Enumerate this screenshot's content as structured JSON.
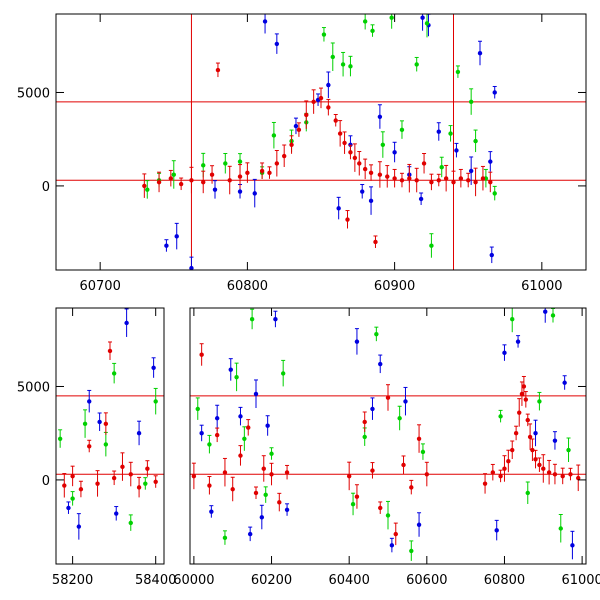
{
  "chart_data": [
    {
      "type": "scatter",
      "title": "",
      "xlabel": "",
      "ylabel": "",
      "xlim": [
        60670,
        61030
      ],
      "ylim": [
        -4500,
        9200
      ],
      "xticks": [
        60700,
        60800,
        60900,
        61000
      ],
      "yticks": [
        0,
        5000
      ],
      "hlines": [
        4500,
        300
      ],
      "vlines": [
        60762,
        60940
      ],
      "series": [
        {
          "color": "#0000e0",
          "points": [
            [
              60745,
              -3200
            ],
            [
              60752,
              -2700
            ],
            [
              60762,
              -4400
            ],
            [
              60778,
              -200
            ],
            [
              60795,
              -300
            ],
            [
              60805,
              -400
            ],
            [
              60812,
              8800
            ],
            [
              60820,
              7600
            ],
            [
              60833,
              3200
            ],
            [
              60848,
              4600
            ],
            [
              60855,
              5400
            ],
            [
              60862,
              -1200
            ],
            [
              60870,
              2200
            ],
            [
              60878,
              -300
            ],
            [
              60884,
              -800
            ],
            [
              60890,
              3700
            ],
            [
              60900,
              1800
            ],
            [
              60910,
              600
            ],
            [
              60918,
              -700
            ],
            [
              60919,
              9000
            ],
            [
              60923,
              8600
            ],
            [
              60930,
              2900
            ],
            [
              60942,
              1900
            ],
            [
              60952,
              800
            ],
            [
              60958,
              7100
            ],
            [
              60965,
              1300
            ],
            [
              60966,
              -3700
            ],
            [
              60968,
              5000
            ]
          ]
        },
        {
          "color": "#00d000",
          "points": [
            [
              60732,
              -200
            ],
            [
              60740,
              300
            ],
            [
              60750,
              600
            ],
            [
              60770,
              1100
            ],
            [
              60785,
              1200
            ],
            [
              60795,
              1300
            ],
            [
              60810,
              700
            ],
            [
              60818,
              2700
            ],
            [
              60830,
              2400
            ],
            [
              60840,
              3400
            ],
            [
              60852,
              8100
            ],
            [
              60858,
              6900
            ],
            [
              60865,
              6500
            ],
            [
              60870,
              6400
            ],
            [
              60880,
              8800
            ],
            [
              60885,
              8300
            ],
            [
              60892,
              2200
            ],
            [
              60898,
              9000
            ],
            [
              60905,
              3000
            ],
            [
              60915,
              6500
            ],
            [
              60922,
              8700
            ],
            [
              60925,
              -3200
            ],
            [
              60932,
              1000
            ],
            [
              60938,
              2800
            ],
            [
              60943,
              6100
            ],
            [
              60952,
              4500
            ],
            [
              60955,
              2400
            ],
            [
              60962,
              400
            ],
            [
              60968,
              -400
            ]
          ]
        },
        {
          "color": "#e00000",
          "points": [
            [
              60730,
              0
            ],
            [
              60740,
              200
            ],
            [
              60748,
              400
            ],
            [
              60755,
              100
            ],
            [
              60762,
              300
            ],
            [
              60770,
              200
            ],
            [
              60776,
              600
            ],
            [
              60780,
              6200
            ],
            [
              60788,
              300
            ],
            [
              60795,
              500
            ],
            [
              60800,
              700
            ],
            [
              60810,
              800
            ],
            [
              60815,
              700
            ],
            [
              60820,
              1200
            ],
            [
              60825,
              1600
            ],
            [
              60830,
              2200
            ],
            [
              60835,
              3000
            ],
            [
              60840,
              3800
            ],
            [
              60845,
              4500
            ],
            [
              60850,
              4700
            ],
            [
              60855,
              4200
            ],
            [
              60860,
              3500
            ],
            [
              60863,
              2800
            ],
            [
              60866,
              2300
            ],
            [
              60868,
              -1800
            ],
            [
              60870,
              1800
            ],
            [
              60873,
              1500
            ],
            [
              60876,
              1200
            ],
            [
              60880,
              900
            ],
            [
              60884,
              700
            ],
            [
              60887,
              -3000
            ],
            [
              60890,
              600
            ],
            [
              60895,
              500
            ],
            [
              60900,
              400
            ],
            [
              60905,
              300
            ],
            [
              60910,
              400
            ],
            [
              60915,
              300
            ],
            [
              60920,
              1200
            ],
            [
              60925,
              200
            ],
            [
              60930,
              300
            ],
            [
              60935,
              400
            ],
            [
              60940,
              200
            ],
            [
              60945,
              400
            ],
            [
              60950,
              300
            ],
            [
              60955,
              200
            ],
            [
              60960,
              400
            ],
            [
              60965,
              200
            ]
          ]
        }
      ]
    },
    {
      "type": "scatter",
      "title": "",
      "xlabel": "",
      "ylabel": "",
      "broken_x_axis": true,
      "segments": [
        {
          "xlim": [
            58160,
            58420
          ],
          "xticks": [
            58200,
            58400
          ]
        },
        {
          "xlim": [
            59990,
            61010
          ],
          "xticks": [
            60000,
            60200,
            60400,
            60600,
            60800,
            61000
          ]
        }
      ],
      "ylim": [
        -4500,
        9200
      ],
      "yticks": [
        0,
        5000
      ],
      "hlines": [
        4500,
        300
      ],
      "series": [
        {
          "color": "#0000e0",
          "points": [
            [
              58190,
              -1500
            ],
            [
              58215,
              -2500
            ],
            [
              58240,
              4200
            ],
            [
              58265,
              3100
            ],
            [
              58305,
              -1800
            ],
            [
              58330,
              8400
            ],
            [
              58360,
              2500
            ],
            [
              58395,
              6000
            ],
            [
              60020,
              2500
            ],
            [
              60045,
              -1700
            ],
            [
              60060,
              3300
            ],
            [
              60095,
              5900
            ],
            [
              60120,
              3400
            ],
            [
              60145,
              -2900
            ],
            [
              60160,
              4600
            ],
            [
              60175,
              -2000
            ],
            [
              60190,
              2900
            ],
            [
              60210,
              8600
            ],
            [
              60240,
              -1600
            ],
            [
              60420,
              7400
            ],
            [
              60460,
              3800
            ],
            [
              60480,
              6200
            ],
            [
              60510,
              -3500
            ],
            [
              60545,
              4200
            ],
            [
              60580,
              -2400
            ],
            [
              60780,
              -2700
            ],
            [
              60800,
              6800
            ],
            [
              60835,
              7400
            ],
            [
              60880,
              2500
            ],
            [
              60905,
              9000
            ],
            [
              60930,
              2100
            ],
            [
              60955,
              5200
            ],
            [
              60975,
              -3500
            ]
          ]
        },
        {
          "color": "#00d000",
          "points": [
            [
              58170,
              2200
            ],
            [
              58200,
              -1000
            ],
            [
              58230,
              3000
            ],
            [
              58280,
              1900
            ],
            [
              58300,
              5700
            ],
            [
              58340,
              -2300
            ],
            [
              58375,
              -200
            ],
            [
              58400,
              4200
            ],
            [
              60010,
              3800
            ],
            [
              60040,
              1900
            ],
            [
              60080,
              -3100
            ],
            [
              60110,
              5500
            ],
            [
              60130,
              2200
            ],
            [
              60150,
              8600
            ],
            [
              60185,
              -800
            ],
            [
              60200,
              1400
            ],
            [
              60230,
              5700
            ],
            [
              60410,
              -1300
            ],
            [
              60440,
              2300
            ],
            [
              60470,
              7800
            ],
            [
              60500,
              -1900
            ],
            [
              60530,
              3300
            ],
            [
              60560,
              -3800
            ],
            [
              60590,
              1500
            ],
            [
              60790,
              3400
            ],
            [
              60820,
              8600
            ],
            [
              60860,
              -700
            ],
            [
              60890,
              4200
            ],
            [
              60925,
              8800
            ],
            [
              60945,
              -2600
            ],
            [
              60965,
              1600
            ]
          ]
        },
        {
          "color": "#e00000",
          "points": [
            [
              58180,
              -300
            ],
            [
              58200,
              200
            ],
            [
              58220,
              -500
            ],
            [
              58240,
              1800
            ],
            [
              58260,
              -200
            ],
            [
              58280,
              3000
            ],
            [
              58290,
              6900
            ],
            [
              58300,
              100
            ],
            [
              58320,
              700
            ],
            [
              58340,
              300
            ],
            [
              58360,
              -400
            ],
            [
              58380,
              600
            ],
            [
              58400,
              -100
            ],
            [
              60000,
              200
            ],
            [
              60020,
              6700
            ],
            [
              60040,
              -300
            ],
            [
              60060,
              2400
            ],
            [
              60080,
              400
            ],
            [
              60100,
              -500
            ],
            [
              60120,
              1300
            ],
            [
              60140,
              2800
            ],
            [
              60160,
              -700
            ],
            [
              60180,
              600
            ],
            [
              60200,
              300
            ],
            [
              60220,
              -1200
            ],
            [
              60240,
              400
            ],
            [
              60400,
              200
            ],
            [
              60420,
              -900
            ],
            [
              60440,
              3100
            ],
            [
              60460,
              500
            ],
            [
              60480,
              -1500
            ],
            [
              60500,
              4400
            ],
            [
              60520,
              -2900
            ],
            [
              60540,
              800
            ],
            [
              60560,
              -400
            ],
            [
              60580,
              2200
            ],
            [
              60600,
              300
            ],
            [
              60750,
              -200
            ],
            [
              60770,
              400
            ],
            [
              60790,
              200
            ],
            [
              60800,
              600
            ],
            [
              60810,
              1000
            ],
            [
              60820,
              1600
            ],
            [
              60830,
              2500
            ],
            [
              60838,
              3600
            ],
            [
              60845,
              4600
            ],
            [
              60850,
              5000
            ],
            [
              60855,
              4300
            ],
            [
              60860,
              3200
            ],
            [
              60866,
              2300
            ],
            [
              60872,
              1600
            ],
            [
              60880,
              1100
            ],
            [
              60890,
              800
            ],
            [
              60900,
              600
            ],
            [
              60915,
              400
            ],
            [
              60930,
              300
            ],
            [
              60950,
              200
            ],
            [
              60970,
              300
            ],
            [
              60990,
              100
            ]
          ]
        }
      ]
    }
  ]
}
